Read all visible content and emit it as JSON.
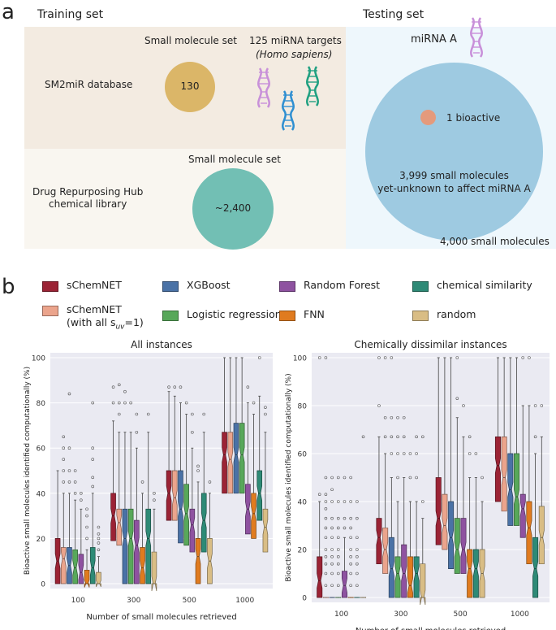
{
  "panel_a": {
    "letter": "a",
    "training_title": "Training set",
    "testing_title": "Testing set",
    "sm_set_1": "Small molecule set",
    "sm2mir_label": "SM2miR database",
    "circle_130": "130",
    "targets_line1": "125 miRNA targets",
    "targets_line2": "(Homo sapiens)",
    "sm_set_2": "Small molecule set",
    "drug_hub_line1": "Drug Repurposing Hub",
    "drug_hub_line2": "chemical library",
    "circle_2400": "~2,400",
    "mirna_a": "miRNA A",
    "bioactive": "1 bioactive",
    "unknown_line1": "3,999 small molecules",
    "unknown_line2": "yet-unknown to affect miRNA A",
    "total": "4,000 small molecules"
  },
  "panel_b": {
    "letter": "b",
    "legend": [
      {
        "label": "sChemNET",
        "color": "#9b2335"
      },
      {
        "label": "XGBoost",
        "color": "#4a72a6"
      },
      {
        "label": "Random Forest",
        "color": "#8e52a0"
      },
      {
        "label": "chemical similarity",
        "color": "#2e8a76"
      },
      {
        "label": "sChemNET",
        "label2_pre": "(with all s",
        "label2_sub": "uv",
        "label2_post": "=1)",
        "color": "#eba48c"
      },
      {
        "label": "Logistic regression",
        "color": "#58a85a"
      },
      {
        "label": "FNN",
        "color": "#e07b1f"
      },
      {
        "label": "random",
        "color": "#d9bd85"
      }
    ]
  },
  "chart_data": [
    {
      "type": "box",
      "title": "All instances",
      "xlabel": "Number of small molecules retrieved",
      "ylabel": "Bioactive small molecules identified computationally (%)",
      "ylim": [
        0,
        100
      ],
      "yticks": [
        0,
        20,
        40,
        60,
        80,
        100
      ],
      "categories": [
        "100",
        "300",
        "500",
        "1000"
      ],
      "series_order": [
        "sChemNET",
        "sChemNET (with all suv=1)",
        "XGBoost",
        "Logistic regression",
        "Random Forest",
        "FNN",
        "chemical similarity",
        "random"
      ],
      "colors": [
        "#9b2335",
        "#eba48c",
        "#4a72a6",
        "#58a85a",
        "#8e52a0",
        "#e07b1f",
        "#2e8a76",
        "#d9bd85"
      ],
      "boxes": [
        [
          {
            "q1": 0,
            "med": 10,
            "q3": 20,
            "whislo": 0,
            "whishi": 50,
            "fliers": []
          },
          {
            "q1": 0,
            "med": 11,
            "q3": 16,
            "whislo": 0,
            "whishi": 40,
            "fliers": [
              45,
              50,
              55,
              60,
              65
            ]
          },
          {
            "q1": 0,
            "med": 8,
            "q3": 16,
            "whislo": 0,
            "whishi": 40,
            "fliers": [
              45,
              50,
              60,
              84
            ]
          },
          {
            "q1": 0,
            "med": 7,
            "q3": 15,
            "whislo": 0,
            "whishi": 37,
            "fliers": [
              40,
              45,
              50
            ]
          },
          {
            "q1": 0,
            "med": 5,
            "q3": 13,
            "whislo": 0,
            "whishi": 33,
            "fliers": [
              37,
              40
            ]
          },
          {
            "q1": 0,
            "med": 0,
            "q3": 6,
            "whislo": 0,
            "whishi": 15,
            "fliers": [
              20,
              25,
              30,
              33
            ]
          },
          {
            "q1": 0,
            "med": 7,
            "q3": 16,
            "whislo": 0,
            "whishi": 40,
            "fliers": [
              43,
              47,
              55,
              60,
              80
            ]
          },
          {
            "q1": 0,
            "med": 0,
            "q3": 5,
            "whislo": 0,
            "whishi": 12,
            "fliers": [
              15,
              18,
              20,
              22,
              25
            ]
          }
        ],
        [
          {
            "q1": 19,
            "med": 30,
            "q3": 40,
            "whislo": 0,
            "whishi": 72,
            "fliers": [
              80,
              87
            ]
          },
          {
            "q1": 17,
            "med": 27,
            "q3": 33,
            "whislo": 0,
            "whishi": 67,
            "fliers": [
              75,
              80,
              88
            ]
          },
          {
            "q1": 0,
            "med": 20,
            "q3": 33,
            "whislo": 0,
            "whishi": 67,
            "fliers": [
              80,
              85
            ]
          },
          {
            "q1": 0,
            "med": 20,
            "q3": 33,
            "whislo": 0,
            "whishi": 67,
            "fliers": [
              80
            ]
          },
          {
            "q1": 0,
            "med": 17,
            "q3": 28,
            "whislo": 0,
            "whishi": 60,
            "fliers": [
              67,
              75
            ]
          },
          {
            "q1": 0,
            "med": 7,
            "q3": 16,
            "whislo": 0,
            "whishi": 40,
            "fliers": [
              45
            ]
          },
          {
            "q1": 0,
            "med": 20,
            "q3": 33,
            "whislo": 0,
            "whishi": 67,
            "fliers": [
              75
            ]
          },
          {
            "q1": 0,
            "med": 0,
            "q3": 14,
            "whislo": 0,
            "whishi": 33,
            "fliers": [
              37,
              40
            ]
          }
        ],
        [
          {
            "q1": 28,
            "med": 40,
            "q3": 50,
            "whislo": 0,
            "whishi": 85,
            "fliers": [
              87
            ]
          },
          {
            "q1": 28,
            "med": 38,
            "q3": 50,
            "whislo": 0,
            "whishi": 83,
            "fliers": [
              87
            ]
          },
          {
            "q1": 18,
            "med": 33,
            "q3": 50,
            "whislo": 0,
            "whishi": 80,
            "fliers": [
              87
            ]
          },
          {
            "q1": 17,
            "med": 31,
            "q3": 44,
            "whislo": 0,
            "whishi": 75,
            "fliers": [
              80
            ]
          },
          {
            "q1": 14,
            "med": 26,
            "q3": 33,
            "whislo": 0,
            "whishi": 60,
            "fliers": [
              67,
              75
            ]
          },
          {
            "q1": 0,
            "med": 12,
            "q3": 20,
            "whislo": 0,
            "whishi": 45,
            "fliers": [
              50,
              52
            ]
          },
          {
            "q1": 14,
            "med": 28,
            "q3": 40,
            "whislo": 0,
            "whishi": 67,
            "fliers": [
              75
            ]
          },
          {
            "q1": 0,
            "med": 10,
            "q3": 20,
            "whislo": 0,
            "whishi": 40,
            "fliers": [
              45
            ]
          }
        ],
        [
          {
            "q1": 40,
            "med": 57,
            "q3": 67,
            "whislo": 0,
            "whishi": 100,
            "fliers": []
          },
          {
            "q1": 40,
            "med": 55,
            "q3": 67,
            "whislo": 0,
            "whishi": 100,
            "fliers": []
          },
          {
            "q1": 40,
            "med": 57,
            "q3": 71,
            "whislo": 0,
            "whishi": 100,
            "fliers": []
          },
          {
            "q1": 40,
            "med": 57,
            "q3": 71,
            "whislo": 0,
            "whishi": 100,
            "fliers": []
          },
          {
            "q1": 22,
            "med": 33,
            "q3": 44,
            "whislo": 0,
            "whishi": 80,
            "fliers": [
              87
            ]
          },
          {
            "q1": 20,
            "med": 31,
            "q3": 40,
            "whislo": 0,
            "whishi": 75,
            "fliers": [
              80
            ]
          },
          {
            "q1": 28,
            "med": 40,
            "q3": 50,
            "whislo": 0,
            "whishi": 83,
            "fliers": [
              100
            ]
          },
          {
            "q1": 14,
            "med": 25,
            "q3": 33,
            "whislo": 0,
            "whishi": 67,
            "fliers": [
              75,
              78
            ]
          }
        ]
      ]
    },
    {
      "type": "box",
      "title": "Chemically dissimilar instances",
      "xlabel": "Number of small molecules retrieved",
      "ylabel": "Bioactive small molecules identified computationally (%)",
      "ylim": [
        0,
        100
      ],
      "yticks": [
        0,
        20,
        40,
        60,
        80,
        100
      ],
      "categories": [
        "100",
        "300",
        "500",
        "1000"
      ],
      "series_order": [
        "sChemNET",
        "sChemNET (with all suv=1)",
        "XGBoost",
        "Logistic regression",
        "Random Forest",
        "FNN",
        "chemical similarity",
        "random"
      ],
      "colors": [
        "#9b2335",
        "#eba48c",
        "#4a72a6",
        "#58a85a",
        "#8e52a0",
        "#e07b1f",
        "#2e8a76",
        "#d9bd85"
      ],
      "boxes": [
        [
          {
            "q1": 0,
            "med": 7,
            "q3": 17,
            "whislo": 0,
            "whishi": 40,
            "fliers": [
              43,
              100
            ]
          },
          {
            "q1": 0,
            "med": 0,
            "q3": 0,
            "whislo": 0,
            "whishi": 0,
            "fliers": [
              5,
              10,
              14,
              17,
              20,
              25,
              29,
              33,
              37,
              40,
              43,
              50,
              100
            ]
          },
          {
            "q1": 0,
            "med": 0,
            "q3": 0,
            "whislo": 0,
            "whishi": 0,
            "fliers": [
              5,
              10,
              14,
              17,
              20,
              25,
              29,
              33,
              40,
              45,
              50
            ]
          },
          {
            "q1": 0,
            "med": 0,
            "q3": 0,
            "whislo": 0,
            "whishi": 0,
            "fliers": [
              5,
              10,
              14,
              17,
              20,
              25,
              29,
              33,
              40,
              50
            ]
          },
          {
            "q1": 0,
            "med": 5,
            "q3": 11,
            "whislo": 0,
            "whishi": 25,
            "fliers": [
              29,
              33,
              40,
              50
            ]
          },
          {
            "q1": 0,
            "med": 0,
            "q3": 0,
            "whislo": 0,
            "whishi": 0,
            "fliers": [
              5,
              10,
              14,
              17,
              20,
              25,
              29,
              33,
              40,
              50
            ]
          },
          {
            "q1": 0,
            "med": 0,
            "q3": 0,
            "whislo": 0,
            "whishi": 0,
            "fliers": [
              5,
              10,
              14,
              17,
              20,
              25,
              33,
              40
            ]
          },
          {
            "q1": 0,
            "med": 0,
            "q3": 0,
            "whislo": 0,
            "whishi": 0,
            "fliers": [
              67
            ]
          }
        ],
        [
          {
            "q1": 14,
            "med": 25,
            "q3": 33,
            "whislo": 0,
            "whishi": 67,
            "fliers": [
              80,
              100
            ]
          },
          {
            "q1": 10,
            "med": 20,
            "q3": 29,
            "whislo": 0,
            "whishi": 60,
            "fliers": [
              67,
              75,
              100
            ]
          },
          {
            "q1": 0,
            "med": 12,
            "q3": 25,
            "whislo": 0,
            "whishi": 50,
            "fliers": [
              60,
              67,
              75,
              100
            ]
          },
          {
            "q1": 0,
            "med": 10,
            "q3": 17,
            "whislo": 0,
            "whishi": 40,
            "fliers": [
              50,
              60,
              67,
              75
            ]
          },
          {
            "q1": 0,
            "med": 10,
            "q3": 22,
            "whislo": 0,
            "whishi": 50,
            "fliers": [
              60,
              67,
              75
            ]
          },
          {
            "q1": 0,
            "med": 5,
            "q3": 17,
            "whislo": 0,
            "whishi": 40,
            "fliers": [
              50,
              60
            ]
          },
          {
            "q1": 0,
            "med": 10,
            "q3": 17,
            "whislo": 0,
            "whishi": 40,
            "fliers": [
              50,
              60,
              67
            ]
          },
          {
            "q1": 0,
            "med": 0,
            "q3": 14,
            "whislo": 0,
            "whishi": 33,
            "fliers": [
              40,
              67
            ]
          }
        ],
        [
          {
            "q1": 22,
            "med": 33,
            "q3": 50,
            "whislo": 0,
            "whishi": 100,
            "fliers": []
          },
          {
            "q1": 20,
            "med": 30,
            "q3": 43,
            "whislo": 0,
            "whishi": 100,
            "fliers": []
          },
          {
            "q1": 12,
            "med": 25,
            "q3": 40,
            "whislo": 0,
            "whishi": 100,
            "fliers": []
          },
          {
            "q1": 10,
            "med": 20,
            "q3": 33,
            "whislo": 0,
            "whishi": 75,
            "fliers": [
              83,
              100
            ]
          },
          {
            "q1": 10,
            "med": 20,
            "q3": 33,
            "whislo": 0,
            "whishi": 67,
            "fliers": [
              80
            ]
          },
          {
            "q1": 0,
            "med": 12,
            "q3": 20,
            "whislo": 0,
            "whishi": 50,
            "fliers": [
              60,
              67
            ]
          },
          {
            "q1": 0,
            "med": 12,
            "q3": 20,
            "whislo": 0,
            "whishi": 50,
            "fliers": [
              60
            ]
          },
          {
            "q1": 0,
            "med": 10,
            "q3": 20,
            "whislo": 0,
            "whishi": 40,
            "fliers": [
              50
            ]
          }
        ],
        [
          {
            "q1": 40,
            "med": 55,
            "q3": 67,
            "whislo": 0,
            "whishi": 100,
            "fliers": []
          },
          {
            "q1": 36,
            "med": 50,
            "q3": 67,
            "whislo": 0,
            "whishi": 100,
            "fliers": []
          },
          {
            "q1": 30,
            "med": 45,
            "q3": 60,
            "whislo": 0,
            "whishi": 100,
            "fliers": []
          },
          {
            "q1": 30,
            "med": 42,
            "q3": 60,
            "whislo": 0,
            "whishi": 100,
            "fliers": []
          },
          {
            "q1": 25,
            "med": 37,
            "q3": 43,
            "whislo": 0,
            "whishi": 80,
            "fliers": [
              100
            ]
          },
          {
            "q1": 14,
            "med": 29,
            "q3": 40,
            "whislo": 0,
            "whishi": 80,
            "fliers": [
              100
            ]
          },
          {
            "q1": 0,
            "med": 12,
            "q3": 25,
            "whislo": 0,
            "whishi": 60,
            "fliers": [
              67,
              80
            ]
          },
          {
            "q1": 14,
            "med": 25,
            "q3": 38,
            "whislo": 0,
            "whishi": 67,
            "fliers": [
              80
            ]
          }
        ]
      ]
    }
  ]
}
